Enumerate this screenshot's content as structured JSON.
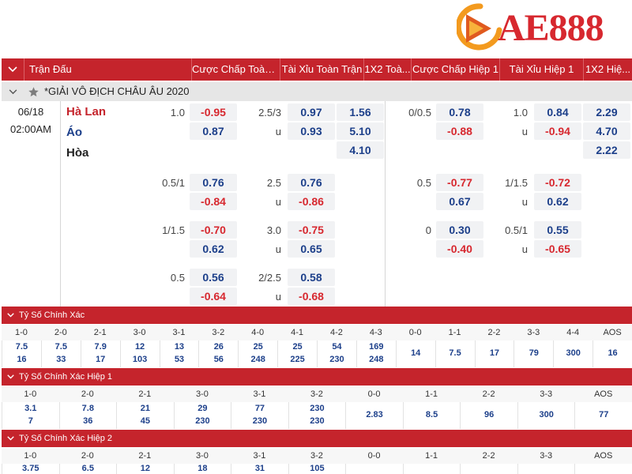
{
  "brand": {
    "logo_text": "AE888",
    "accent": "#d7282f"
  },
  "header": {
    "col_match": "Trận Đấu",
    "col_hcp_ft": "Cược Chấp Toàn ...",
    "col_ou_ft": "Tài Xỉu Toàn Trận",
    "col_1x2_ft": "1X2 Toà...",
    "col_hcp_h1": "Cược Chấp Hiệp 1",
    "col_ou_h1": "Tài Xỉu Hiệp 1",
    "col_1x2_h1": "1X2 Hiệ..."
  },
  "league": {
    "name": "*GIẢI VÔ ĐỊCH CHÂU ÂU 2020"
  },
  "match": {
    "date": "06/18",
    "time": "02:00AM",
    "home": "Hà Lan",
    "away": "Áo",
    "draw": "Hòa",
    "lines": [
      {
        "hcp_ft": "1.0",
        "hcp_ft_home": "-0.95",
        "hcp_ft_away": "0.87",
        "ou_ft": "2.5/3",
        "ou_ft_over": "0.97",
        "ou_ft_u": "u",
        "ou_ft_under": "0.93",
        "x12_ft_1": "1.56",
        "x12_ft_2": "5.10",
        "x12_ft_x": "4.10",
        "hcp_h1": "0/0.5",
        "hcp_h1_home": "0.78",
        "hcp_h1_away": "-0.88",
        "ou_h1": "1.0",
        "ou_h1_over": "0.84",
        "ou_h1_u": "u",
        "ou_h1_under": "-0.94",
        "x12_h1_1": "2.29",
        "x12_h1_2": "4.70",
        "x12_h1_x": "2.22"
      },
      {
        "hcp_ft": "0.5/1",
        "hcp_ft_home": "0.76",
        "hcp_ft_away": "-0.84",
        "ou_ft": "2.5",
        "ou_ft_over": "0.76",
        "ou_ft_u": "u",
        "ou_ft_under": "-0.86",
        "hcp_h1": "0.5",
        "hcp_h1_home": "-0.77",
        "hcp_h1_away": "0.67",
        "ou_h1": "1/1.5",
        "ou_h1_over": "-0.72",
        "ou_h1_u": "u",
        "ou_h1_under": "0.62"
      },
      {
        "hcp_ft": "1/1.5",
        "hcp_ft_home": "-0.70",
        "hcp_ft_away": "0.62",
        "ou_ft": "3.0",
        "ou_ft_over": "-0.75",
        "ou_ft_u": "u",
        "ou_ft_under": "0.65",
        "hcp_h1": "0",
        "hcp_h1_home": "0.30",
        "hcp_h1_away": "-0.40",
        "ou_h1": "0.5/1",
        "ou_h1_over": "0.55",
        "ou_h1_u": "u",
        "ou_h1_under": "-0.65"
      },
      {
        "hcp_ft": "0.5",
        "hcp_ft_home": "0.56",
        "hcp_ft_away": "-0.64",
        "ou_ft": "2/2.5",
        "ou_ft_over": "0.58",
        "ou_ft_u": "u",
        "ou_ft_under": "-0.68"
      }
    ]
  },
  "correct_score": {
    "title": "Tỷ Số Chính Xác",
    "headers": [
      "1-0",
      "2-0",
      "2-1",
      "3-0",
      "3-1",
      "3-2",
      "4-0",
      "4-1",
      "4-2",
      "4-3",
      "0-0",
      "1-1",
      "2-2",
      "3-3",
      "4-4",
      "AOS"
    ],
    "top": [
      "7.5",
      "7.5",
      "7.9",
      "12",
      "13",
      "26",
      "25",
      "25",
      "54",
      "169",
      "14",
      "7.5",
      "17",
      "79",
      "300",
      "16"
    ],
    "bottom": [
      "16",
      "33",
      "17",
      "103",
      "53",
      "56",
      "248",
      "225",
      "230",
      "248",
      "",
      "",
      "",
      "",
      "",
      ""
    ]
  },
  "correct_score_h1": {
    "title": "Tỷ Số Chính Xác Hiệp 1",
    "headers": [
      "1-0",
      "2-0",
      "2-1",
      "3-0",
      "3-1",
      "3-2",
      "0-0",
      "1-1",
      "2-2",
      "3-3",
      "AOS"
    ],
    "top": [
      "3.1",
      "7.8",
      "21",
      "29",
      "77",
      "230",
      "2.83",
      "8.5",
      "96",
      "300",
      "77"
    ],
    "bottom": [
      "7",
      "36",
      "45",
      "230",
      "230",
      "230",
      "",
      "",
      "",
      "",
      ""
    ]
  },
  "correct_score_h2": {
    "title": "Tỷ Số Chính Xác Hiệp 2",
    "headers": [
      "1-0",
      "2-0",
      "2-1",
      "3-0",
      "3-1",
      "3-2",
      "0-0",
      "1-1",
      "2-2",
      "3-3",
      "AOS"
    ],
    "top": [
      "3.75",
      "6.5",
      "12",
      "18",
      "31",
      "105",
      "",
      "",
      "",
      "",
      ""
    ]
  }
}
